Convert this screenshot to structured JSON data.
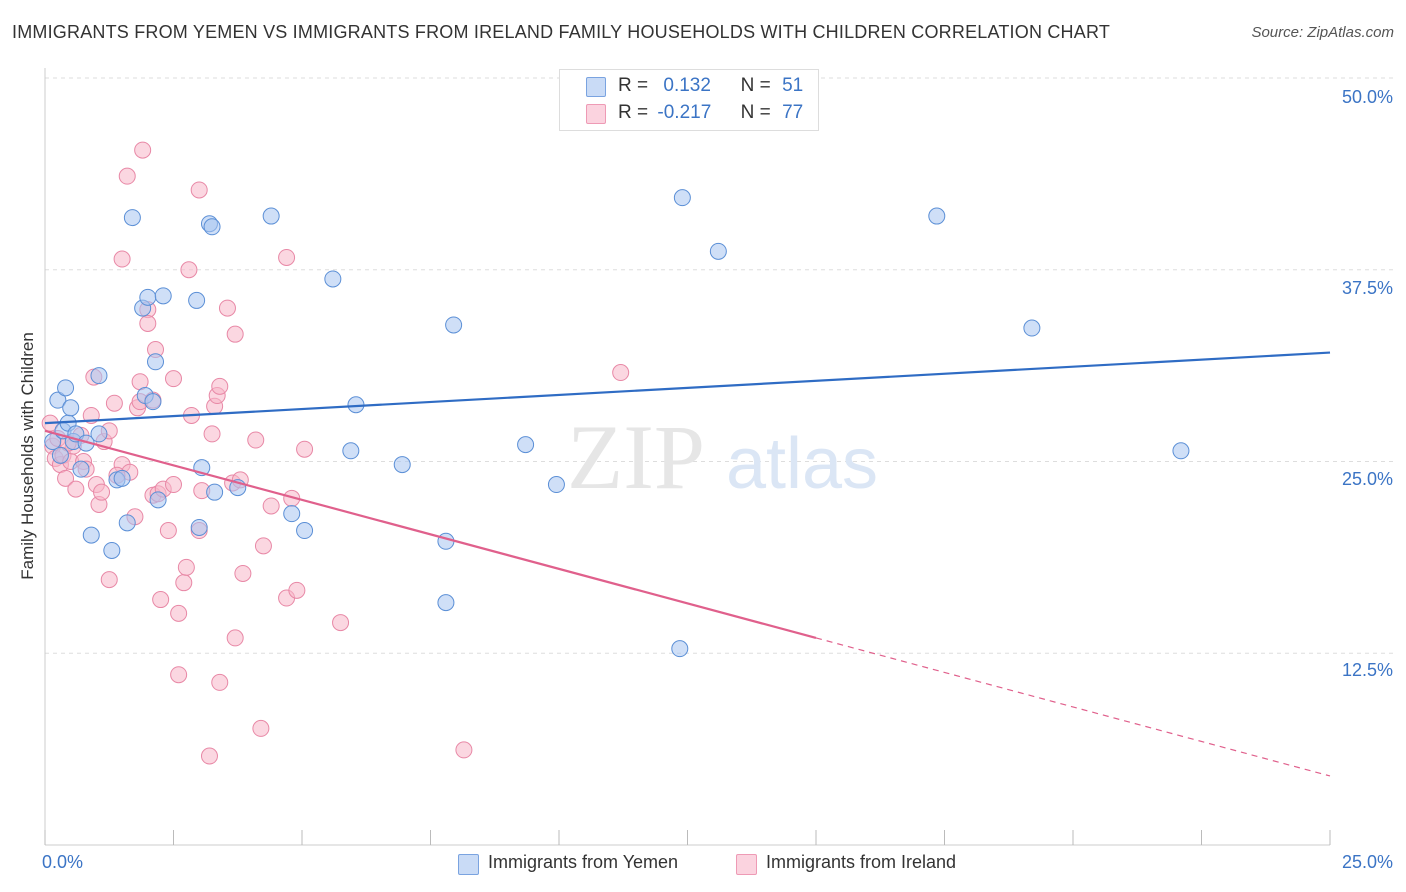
{
  "title": "IMMIGRANTS FROM YEMEN VS IMMIGRANTS FROM IRELAND FAMILY HOUSEHOLDS WITH CHILDREN CORRELATION CHART",
  "source": "Source: ZipAtlas.com",
  "watermark": {
    "zip": "ZIP",
    "atlas": "atlas"
  },
  "legend": {
    "rows": [
      {
        "r_label": "R =",
        "r_value": "0.132",
        "n_label": "N =",
        "n_value": "51",
        "color": "#a8c4f0"
      },
      {
        "r_label": "R =",
        "r_value": "-0.217",
        "n_label": "N =",
        "n_value": "77",
        "color": "#f7b6c8"
      }
    ]
  },
  "bottom_legend": [
    {
      "label": "Immigrants from Yemen",
      "color": "#a8c4f0"
    },
    {
      "label": "Immigrants from Ireland",
      "color": "#f7b6c8"
    }
  ],
  "colors": {
    "yemen_fill": "#a8c4f0",
    "yemen_stroke": "#5b8fd6",
    "yemen_line": "#2f6cc4",
    "ireland_fill": "#f7b6c8",
    "ireland_stroke": "#e888a6",
    "ireland_line": "#e0608c",
    "tick_text": "#3b74c5",
    "grid": "#dddddd"
  },
  "chart_data": {
    "type": "scatter",
    "title": "IMMIGRANTS FROM YEMEN VS IMMIGRANTS FROM IRELAND FAMILY HOUSEHOLDS WITH CHILDREN CORRELATION CHART",
    "xlabel": "",
    "ylabel": "Family Households with Children",
    "xlim": [
      0,
      25
    ],
    "ylim": [
      0,
      50
    ],
    "x_tick_labels": [
      "0.0%",
      "25.0%"
    ],
    "y_ticks": [
      12.5,
      25.0,
      37.5,
      50.0
    ],
    "y_tick_labels": [
      "12.5%",
      "25.0%",
      "37.5%",
      "50.0%"
    ],
    "grid": true,
    "legend_placement": "top-center",
    "series": [
      {
        "name": "Immigrants from Yemen",
        "points": [
          [
            0.15,
            26.3
          ],
          [
            0.25,
            29.0
          ],
          [
            0.35,
            27.0
          ],
          [
            0.4,
            29.8
          ],
          [
            0.45,
            27.5
          ],
          [
            0.5,
            28.5
          ],
          [
            0.55,
            26.3
          ],
          [
            0.6,
            26.8
          ],
          [
            0.7,
            24.5
          ],
          [
            0.8,
            26.2
          ],
          [
            0.9,
            20.2
          ],
          [
            1.05,
            30.6
          ],
          [
            1.05,
            26.8
          ],
          [
            1.3,
            19.2
          ],
          [
            1.4,
            23.8
          ],
          [
            1.5,
            23.9
          ],
          [
            1.6,
            21.0
          ],
          [
            1.7,
            40.9
          ],
          [
            1.9,
            35.0
          ],
          [
            1.95,
            29.3
          ],
          [
            2.0,
            35.7
          ],
          [
            2.1,
            28.9
          ],
          [
            2.15,
            31.5
          ],
          [
            2.2,
            22.5
          ],
          [
            2.3,
            35.8
          ],
          [
            2.95,
            35.5
          ],
          [
            3.0,
            20.7
          ],
          [
            3.05,
            24.6
          ],
          [
            3.2,
            40.5
          ],
          [
            3.25,
            40.3
          ],
          [
            3.3,
            23.0
          ],
          [
            3.75,
            23.3
          ],
          [
            4.4,
            41.0
          ],
          [
            4.8,
            21.6
          ],
          [
            5.05,
            20.5
          ],
          [
            5.6,
            36.9
          ],
          [
            5.95,
            25.7
          ],
          [
            6.05,
            28.7
          ],
          [
            6.95,
            24.8
          ],
          [
            7.8,
            19.8
          ],
          [
            7.8,
            15.8
          ],
          [
            7.95,
            33.9
          ],
          [
            9.35,
            26.1
          ],
          [
            9.95,
            23.5
          ],
          [
            12.35,
            12.8
          ],
          [
            12.4,
            42.2
          ],
          [
            13.1,
            38.7
          ],
          [
            17.35,
            41.0
          ],
          [
            19.2,
            33.7
          ],
          [
            22.1,
            25.7
          ],
          [
            0.3,
            25.4
          ]
        ],
        "trend": {
          "x": [
            0,
            25
          ],
          "y": [
            27.5,
            32.1
          ]
        }
      },
      {
        "name": "Immigrants from Ireland",
        "points": [
          [
            0.1,
            27.5
          ],
          [
            0.15,
            26.0
          ],
          [
            0.2,
            25.2
          ],
          [
            0.25,
            26.5
          ],
          [
            0.3,
            24.8
          ],
          [
            0.35,
            25.4
          ],
          [
            0.4,
            23.9
          ],
          [
            0.5,
            25.0
          ],
          [
            0.55,
            26.0
          ],
          [
            0.6,
            23.2
          ],
          [
            0.7,
            26.7
          ],
          [
            0.75,
            25.0
          ],
          [
            0.8,
            24.5
          ],
          [
            0.9,
            28.0
          ],
          [
            0.95,
            30.5
          ],
          [
            1.0,
            23.5
          ],
          [
            1.05,
            22.2
          ],
          [
            1.1,
            23.0
          ],
          [
            1.15,
            26.3
          ],
          [
            1.25,
            27.0
          ],
          [
            1.25,
            17.3
          ],
          [
            1.35,
            28.8
          ],
          [
            1.5,
            38.2
          ],
          [
            1.5,
            24.8
          ],
          [
            1.6,
            43.6
          ],
          [
            1.65,
            24.3
          ],
          [
            1.75,
            21.4
          ],
          [
            1.8,
            28.5
          ],
          [
            1.85,
            30.2
          ],
          [
            1.85,
            28.9
          ],
          [
            1.9,
            45.3
          ],
          [
            2.0,
            34.9
          ],
          [
            2.0,
            34.0
          ],
          [
            2.1,
            22.8
          ],
          [
            2.1,
            29.0
          ],
          [
            2.15,
            32.3
          ],
          [
            2.2,
            22.9
          ],
          [
            2.25,
            16.0
          ],
          [
            2.3,
            23.2
          ],
          [
            2.4,
            20.5
          ],
          [
            2.5,
            23.5
          ],
          [
            2.5,
            30.4
          ],
          [
            2.6,
            11.1
          ],
          [
            2.6,
            15.1
          ],
          [
            2.7,
            17.1
          ],
          [
            2.75,
            18.1
          ],
          [
            2.8,
            37.5
          ],
          [
            2.85,
            28.0
          ],
          [
            3.0,
            42.7
          ],
          [
            3.0,
            20.5
          ],
          [
            3.05,
            23.1
          ],
          [
            3.2,
            5.8
          ],
          [
            3.25,
            26.8
          ],
          [
            3.3,
            28.6
          ],
          [
            3.35,
            29.3
          ],
          [
            3.4,
            29.9
          ],
          [
            3.4,
            10.6
          ],
          [
            3.55,
            35.0
          ],
          [
            3.65,
            23.6
          ],
          [
            3.7,
            13.5
          ],
          [
            3.7,
            33.3
          ],
          [
            3.8,
            23.8
          ],
          [
            3.85,
            17.7
          ],
          [
            4.1,
            26.4
          ],
          [
            4.2,
            7.6
          ],
          [
            4.25,
            19.5
          ],
          [
            4.4,
            22.1
          ],
          [
            4.7,
            38.3
          ],
          [
            4.7,
            16.1
          ],
          [
            4.8,
            22.6
          ],
          [
            4.9,
            16.6
          ],
          [
            5.05,
            25.8
          ],
          [
            5.75,
            14.5
          ],
          [
            8.15,
            6.2
          ],
          [
            11.2,
            30.8
          ],
          [
            0.45,
            26.2
          ],
          [
            1.4,
            24.1
          ]
        ],
        "trend": {
          "x": [
            0,
            15
          ],
          "y": [
            27.0,
            13.5
          ],
          "dashed_extension": {
            "x": [
              15,
              25
            ],
            "y": [
              13.5,
              4.5
            ]
          }
        }
      }
    ]
  }
}
